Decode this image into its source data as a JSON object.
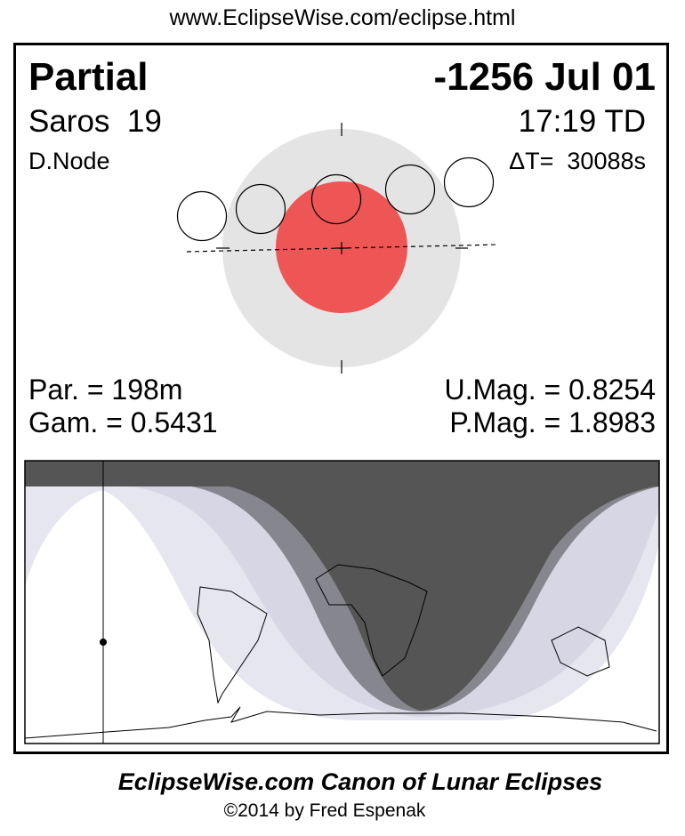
{
  "header": {
    "url": "www.EclipseWise.com/eclipse.html"
  },
  "eclipse": {
    "type": "Partial",
    "date": "-1256 Jul 01",
    "saros": "Saros  19",
    "time": "17:19 TD",
    "node": "D.Node",
    "delta_t": "ΔT=  30088s",
    "par": "Par. = 198m",
    "gam": "Gam. = 0.5431",
    "umag": "U.Mag. = 0.8254",
    "pmag": "P.Mag. = 1.8983"
  },
  "colors": {
    "penumbra": "#e4e4e4",
    "umbra": "#ee5555",
    "map_night": "#555555",
    "map_umbral_band": "#86868f",
    "map_penumbral_inner": "#d6d6e4",
    "map_penumbral_outer": "#e6e6f0"
  },
  "footer": {
    "title": "EclipseWise.com Canon of Lunar Eclipses",
    "copyright": "©2014 by Fred Espenak"
  }
}
